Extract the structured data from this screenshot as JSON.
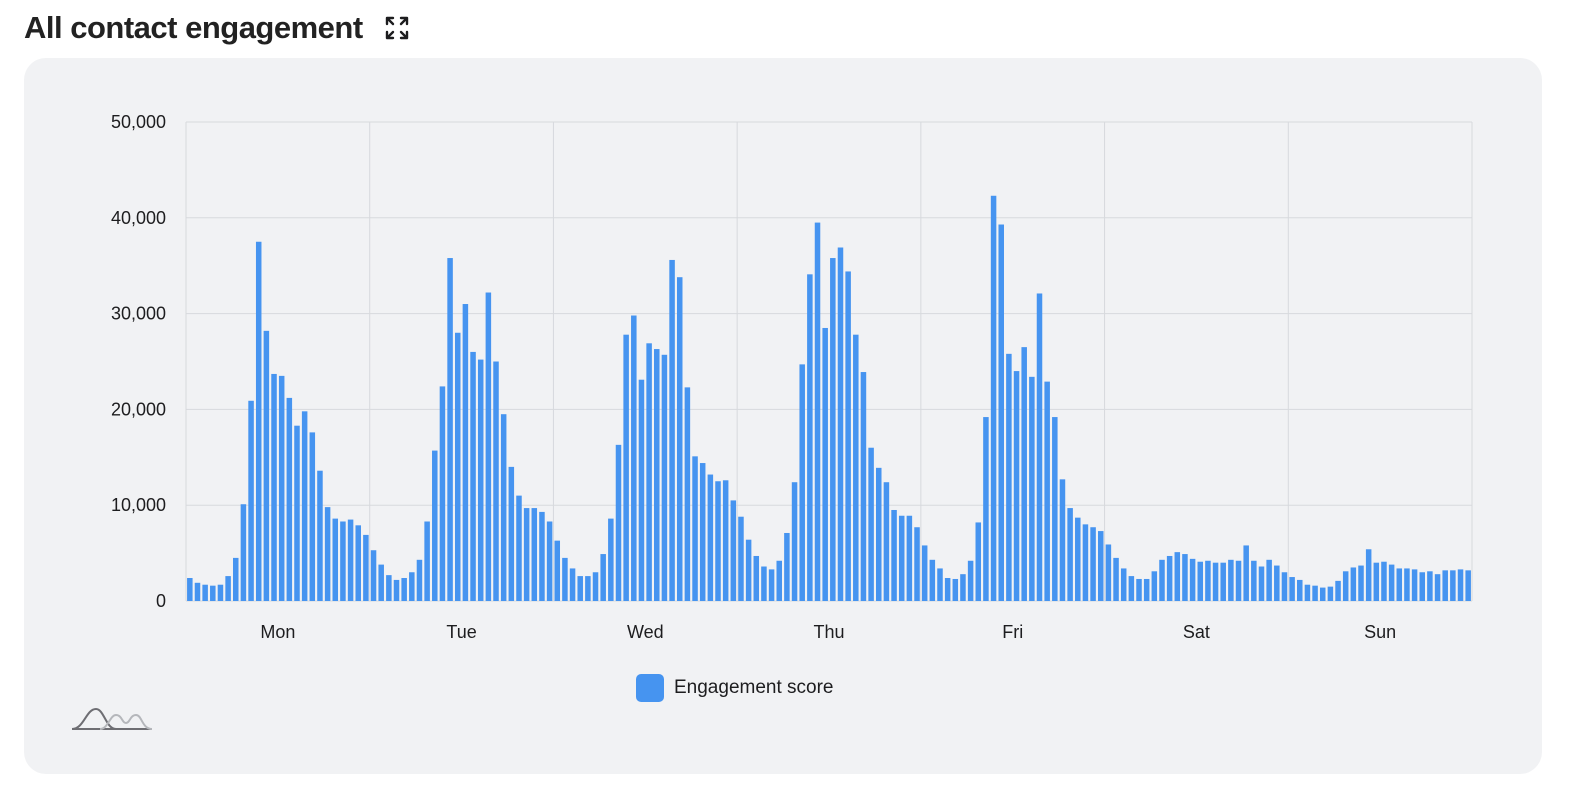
{
  "header": {
    "title": "All contact engagement",
    "expand_icon": "expand-icon"
  },
  "colors": {
    "bar": "#4694f0",
    "grid": "#d7d9dd",
    "panel": "#f1f2f4"
  },
  "chart_data": {
    "type": "bar",
    "title": "",
    "xlabel": "",
    "ylabel": "",
    "ylim": [
      0,
      50000
    ],
    "yticks": [
      0,
      10000,
      20000,
      30000,
      40000,
      50000
    ],
    "ytick_labels": [
      "0",
      "10,000",
      "20,000",
      "30,000",
      "40,000",
      "50,000"
    ],
    "day_labels": [
      "Mon",
      "Tue",
      "Wed",
      "Thu",
      "Fri",
      "Sat",
      "Sun"
    ],
    "grid": true,
    "legend": {
      "position": "bottom-center",
      "entries": [
        "Engagement score"
      ]
    },
    "series": [
      {
        "name": "Engagement score",
        "values": [
          2400,
          1900,
          1700,
          1600,
          1700,
          2600,
          4500,
          10100,
          20900,
          37500,
          28200,
          23700,
          23500,
          21200,
          18300,
          19800,
          17600,
          13600,
          9800,
          8600,
          8300,
          8500,
          7900,
          6900,
          5300,
          3800,
          2700,
          2200,
          2400,
          3000,
          4300,
          8300,
          15700,
          22400,
          35800,
          28000,
          31000,
          26000,
          25200,
          32200,
          25000,
          19500,
          14000,
          11000,
          9700,
          9700,
          9300,
          8300,
          6300,
          4500,
          3400,
          2600,
          2600,
          3000,
          4900,
          8600,
          16300,
          27800,
          29800,
          23100,
          26900,
          26300,
          25700,
          35600,
          33800,
          22300,
          15100,
          14400,
          13200,
          12500,
          12600,
          10500,
          8800,
          6400,
          4700,
          3600,
          3300,
          4200,
          7100,
          12400,
          24700,
          34100,
          39500,
          28500,
          35800,
          36900,
          34400,
          27800,
          23900,
          16000,
          13900,
          12400,
          9500,
          8900,
          8900,
          7700,
          5800,
          4300,
          3400,
          2400,
          2300,
          2800,
          4200,
          8200,
          19200,
          42300,
          39300,
          25800,
          24000,
          26500,
          23400,
          32100,
          22900,
          19200,
          12700,
          9700,
          8700,
          8000,
          7700,
          7300,
          5900,
          4500,
          3400,
          2600,
          2300,
          2300,
          3100,
          4300,
          4700,
          5100,
          4900,
          4400,
          4100,
          4200,
          4000,
          4000,
          4300,
          4200,
          5800,
          4200,
          3600,
          4300,
          3700,
          3000,
          2500,
          2200,
          1700,
          1600,
          1400,
          1500,
          2100,
          3100,
          3500,
          3700,
          5400,
          4000,
          4100,
          3800,
          3400,
          3400,
          3300,
          3000,
          3100,
          2800,
          3200,
          3200,
          3300,
          3200
        ]
      }
    ]
  }
}
